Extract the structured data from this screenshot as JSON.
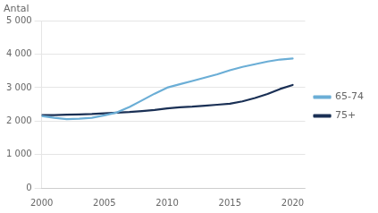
{
  "chart_data": {
    "type": "line",
    "ylabel": "Antal",
    "x": [
      2000,
      2001,
      2002,
      2003,
      2004,
      2005,
      2006,
      2007,
      2008,
      2009,
      2010,
      2011,
      2012,
      2013,
      2014,
      2015,
      2016,
      2017,
      2018,
      2019,
      2020
    ],
    "series": [
      {
        "name": "65-74",
        "color": "#6BAED6",
        "values": [
          2150,
          2100,
          2060,
          2070,
          2100,
          2170,
          2260,
          2420,
          2620,
          2820,
          3000,
          3100,
          3200,
          3300,
          3400,
          3520,
          3620,
          3700,
          3780,
          3840,
          3870
        ]
      },
      {
        "name": "75+",
        "color": "#1A3055",
        "values": [
          2180,
          2180,
          2190,
          2200,
          2210,
          2230,
          2250,
          2270,
          2300,
          2330,
          2380,
          2410,
          2430,
          2460,
          2490,
          2520,
          2590,
          2690,
          2810,
          2960,
          3080
        ]
      }
    ],
    "xlim": [
      2000,
      2021
    ],
    "xticks": [
      2000,
      2005,
      2010,
      2015,
      2020
    ],
    "ylim": [
      0,
      5000
    ],
    "yticks": [
      0,
      {
        "value": 1000,
        "label": "1 000"
      },
      {
        "value": 2000,
        "label": "2 000"
      },
      {
        "value": 3000,
        "label": "3 000"
      },
      {
        "value": 4000,
        "label": "4 000"
      },
      {
        "value": 5000,
        "label": "5 000"
      }
    ],
    "grid": "y",
    "legend": "right"
  }
}
